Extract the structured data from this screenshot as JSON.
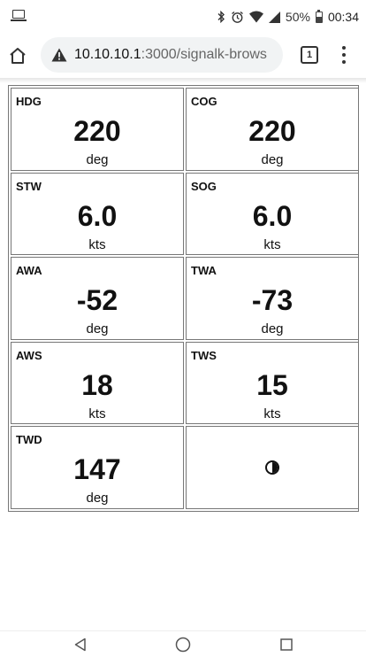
{
  "status_bar": {
    "battery_text": "50%",
    "battery_level": 0.5,
    "time": "00:34",
    "icons": [
      "screen-cast-icon",
      "bluetooth-icon",
      "alarm-icon",
      "wifi-icon",
      "signal-icon",
      "battery-icon"
    ]
  },
  "browser": {
    "url_host": "10.10.10.1",
    "url_rest": ":3000/signalk-brows",
    "tab_count": "1",
    "icons": [
      "home-icon",
      "not-secure-warning-icon",
      "tab-switcher-icon",
      "overflow-menu-icon"
    ]
  },
  "instruments": [
    {
      "label": "HDG",
      "value": "220",
      "unit": "deg"
    },
    {
      "label": "COG",
      "value": "220",
      "unit": "deg"
    },
    {
      "label": "STW",
      "value": "6.0",
      "unit": "kts"
    },
    {
      "label": "SOG",
      "value": "6.0",
      "unit": "kts"
    },
    {
      "label": "AWA",
      "value": "-52",
      "unit": "deg"
    },
    {
      "label": "TWA",
      "value": "-73",
      "unit": "deg"
    },
    {
      "label": "AWS",
      "value": "18",
      "unit": "kts"
    },
    {
      "label": "TWS",
      "value": "15",
      "unit": "kts"
    },
    {
      "label": "TWD",
      "value": "147",
      "unit": "deg"
    }
  ],
  "controls": {
    "mode_toggle_icon": "contrast-icon"
  },
  "nav_bar": {
    "icons": [
      "back-icon",
      "home-circle-icon",
      "recents-icon"
    ]
  }
}
